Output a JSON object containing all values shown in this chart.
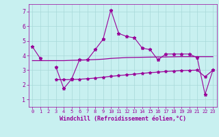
{
  "x": [
    0,
    1,
    2,
    3,
    4,
    5,
    6,
    7,
    8,
    9,
    10,
    11,
    12,
    13,
    14,
    15,
    16,
    17,
    18,
    19,
    20,
    21,
    22,
    23
  ],
  "line1": [
    4.6,
    3.8,
    null,
    3.2,
    1.75,
    2.4,
    3.7,
    3.7,
    4.4,
    5.1,
    7.1,
    5.5,
    5.3,
    5.2,
    4.5,
    4.4,
    3.7,
    4.1,
    4.1,
    4.1,
    4.1,
    3.85,
    1.35,
    3.0
  ],
  "flat1": [
    3.65,
    3.65,
    3.65,
    3.65,
    3.65,
    3.67,
    3.68,
    3.7,
    3.72,
    3.75,
    3.8,
    3.83,
    3.86,
    3.87,
    3.88,
    3.89,
    3.9,
    3.9,
    3.91,
    3.92,
    3.92,
    3.92,
    3.92,
    3.92
  ],
  "flat2": [
    null,
    null,
    null,
    2.35,
    2.35,
    2.36,
    2.38,
    2.42,
    2.46,
    2.52,
    2.58,
    2.63,
    2.68,
    2.73,
    2.78,
    2.83,
    2.87,
    2.91,
    2.94,
    2.97,
    2.99,
    3.0,
    2.55,
    3.0
  ],
  "line_color": "#990099",
  "bg_color": "#c8f0f0",
  "grid_color": "#a8d8d8",
  "xlabel": "Windchill (Refroidissement éolien,°C)",
  "ylim": [
    0.5,
    7.5
  ],
  "xlim": [
    -0.5,
    23.5
  ],
  "yticks": [
    1,
    2,
    3,
    4,
    5,
    6,
    7
  ],
  "xticks": [
    0,
    1,
    2,
    3,
    4,
    5,
    6,
    7,
    8,
    9,
    10,
    11,
    12,
    13,
    14,
    15,
    16,
    17,
    18,
    19,
    20,
    21,
    22,
    23
  ]
}
